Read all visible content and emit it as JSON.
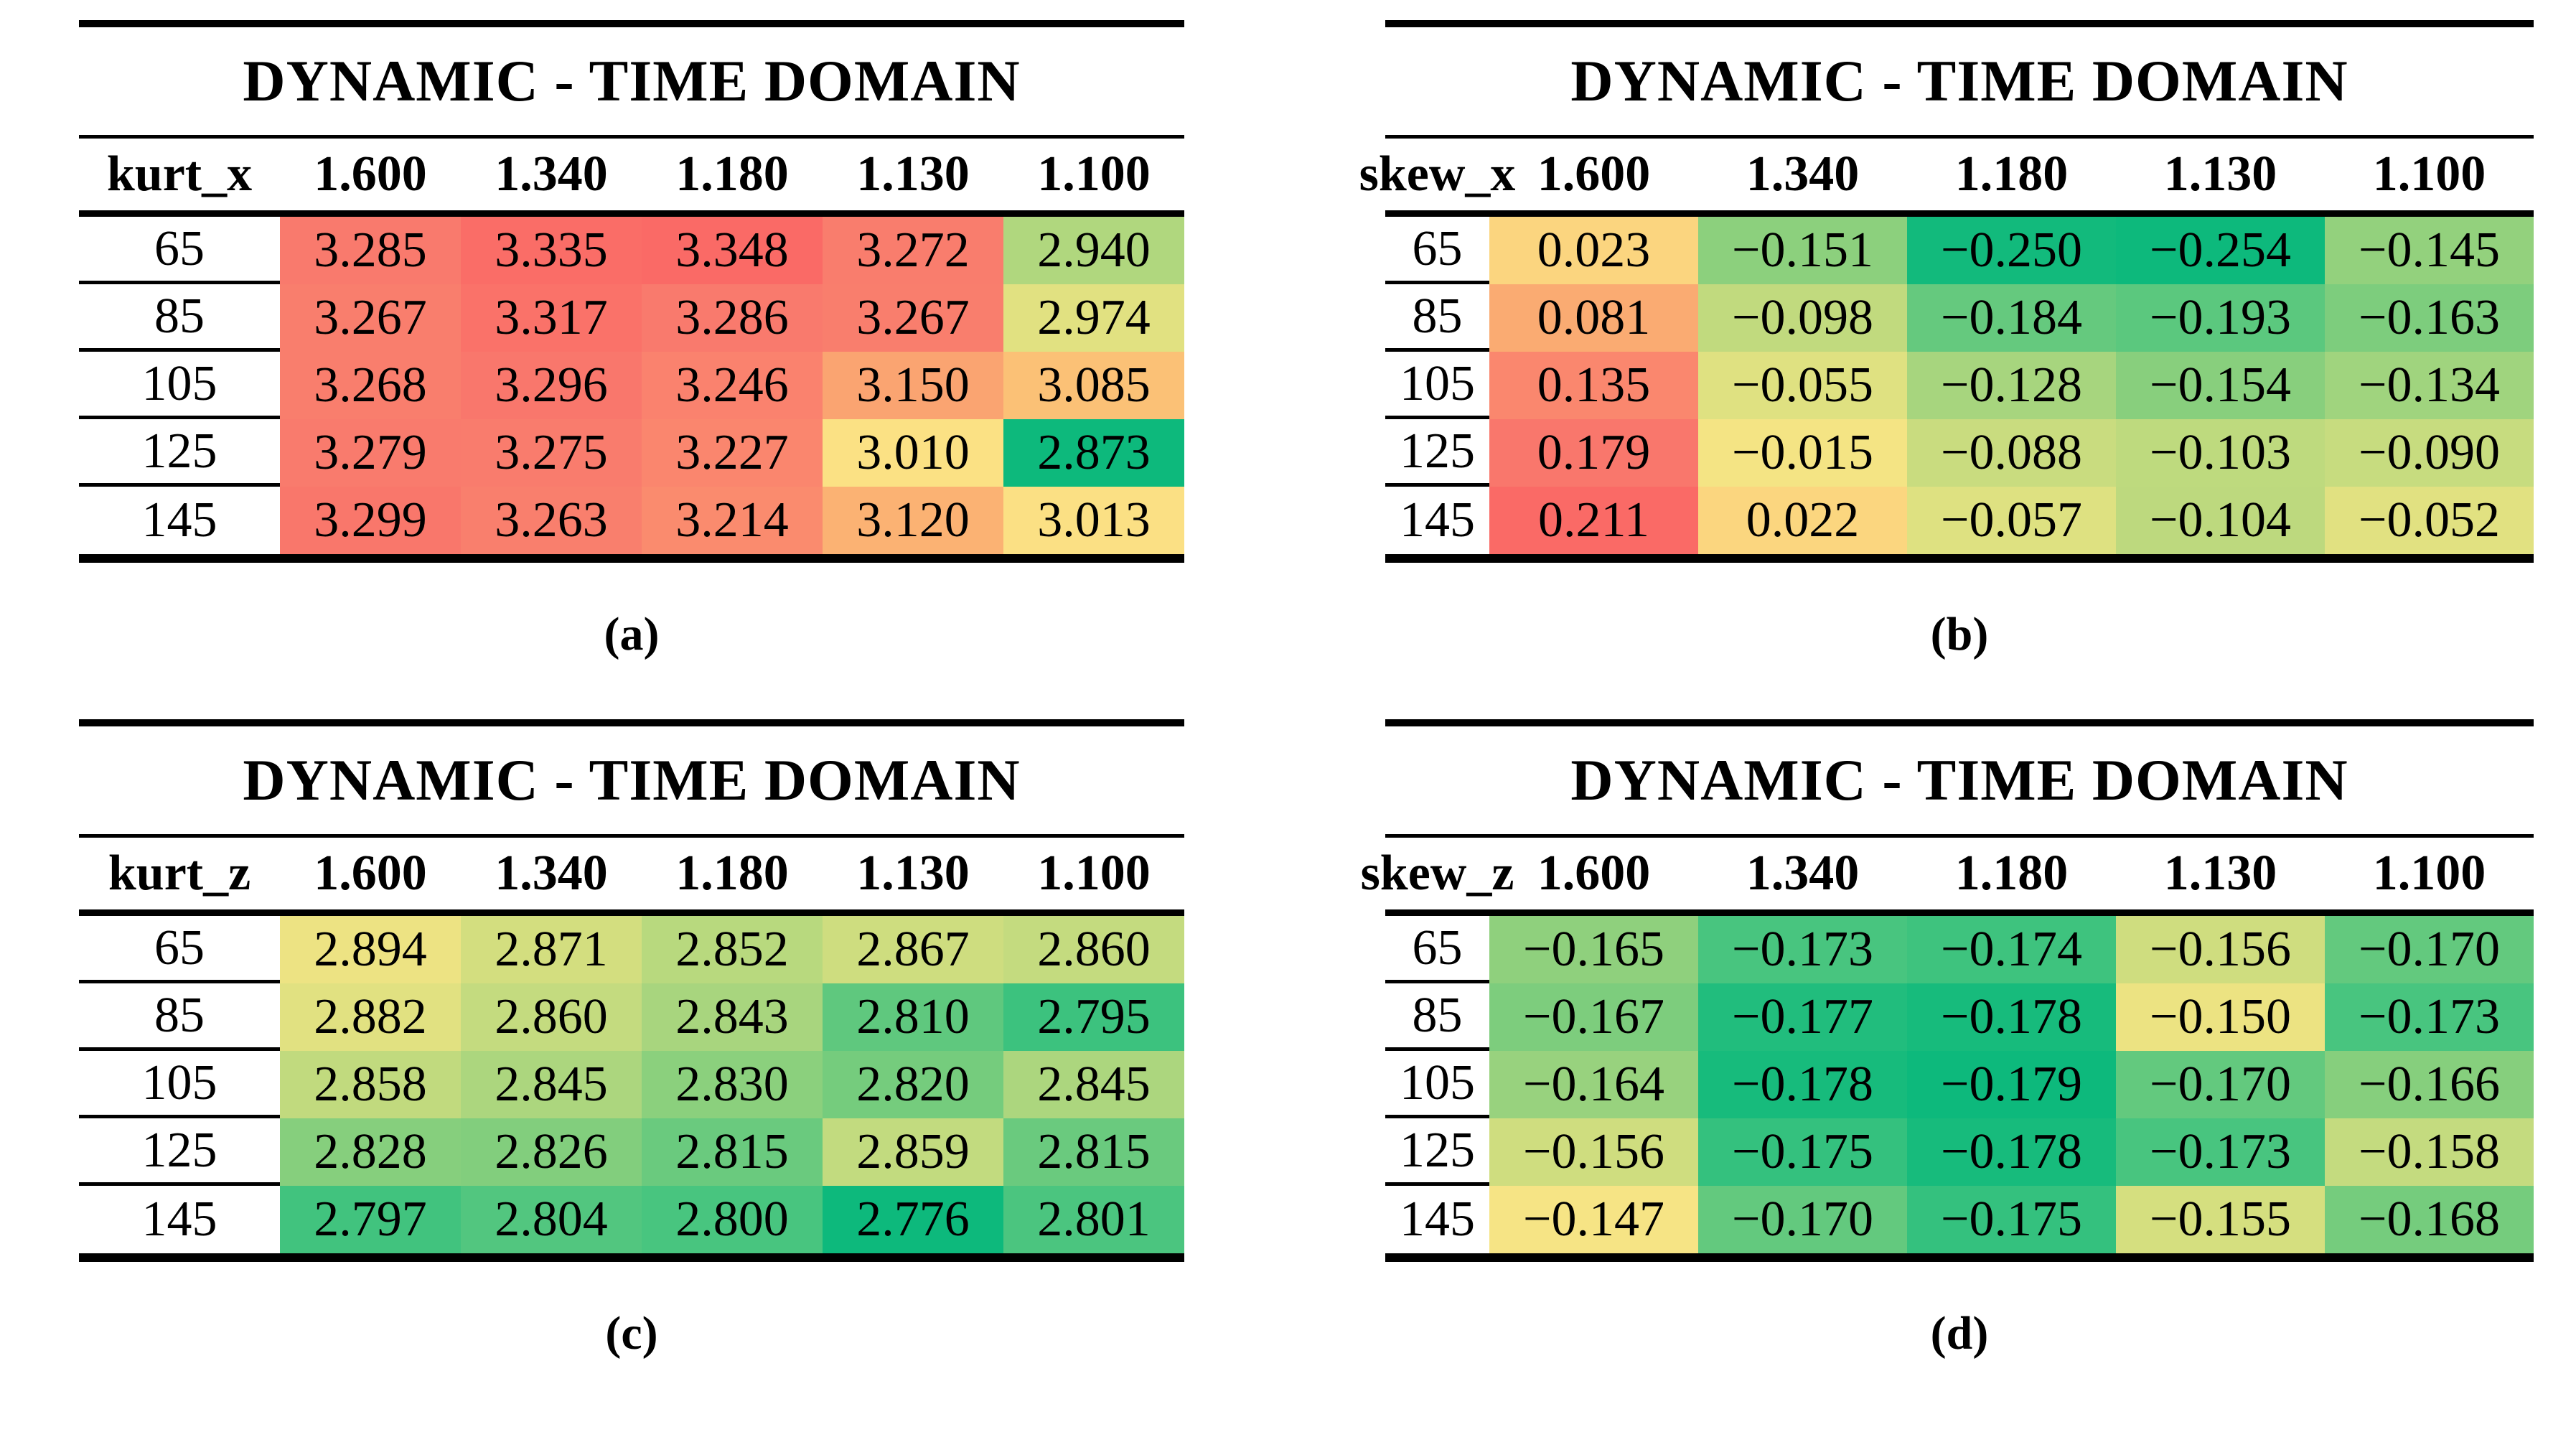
{
  "figure": {
    "type": "heatmap-table-figure",
    "panel_count": 4
  },
  "color_scale": {
    "description": "diverging green-yellow-red conditional formatting",
    "green_hex": "#0DB97C",
    "yellow_hex": "#FBE586",
    "red_hex": "#FA6A66",
    "green_to_yellow_stops": [
      [
        0.0,
        [
          13,
          185,
          124
        ]
      ],
      [
        0.2,
        [
          79,
          198,
          127
        ]
      ],
      [
        0.36,
        [
          126,
          205,
          125
        ]
      ],
      [
        0.53,
        [
          177,
          215,
          126
        ]
      ],
      [
        0.7,
        [
          210,
          222,
          127
        ]
      ],
      [
        0.85,
        [
          234,
          227,
          130
        ]
      ],
      [
        1.0,
        [
          251,
          229,
          134
        ]
      ]
    ],
    "yellow_to_red_stops": [
      [
        0.0,
        [
          251,
          229,
          134
        ]
      ],
      [
        0.24,
        [
          251,
          194,
          118
        ]
      ],
      [
        0.45,
        [
          250,
          161,
          112
        ]
      ],
      [
        0.65,
        [
          250,
          134,
          110
        ]
      ],
      [
        0.82,
        [
          249,
          122,
          109
        ]
      ],
      [
        1.0,
        [
          250,
          106,
          102
        ]
      ]
    ]
  },
  "tables": [
    {
      "title": "DYNAMIC - TIME DOMAIN",
      "corner_label": "kurt_x",
      "columns": [
        "1.600",
        "1.340",
        "1.180",
        "1.130",
        "1.100"
      ],
      "rows": [
        {
          "label": "65",
          "values": [
            "3.285",
            "3.335",
            "3.348",
            "3.272",
            "2.940"
          ]
        },
        {
          "label": "85",
          "values": [
            "3.267",
            "3.317",
            "3.286",
            "3.267",
            "2.974"
          ]
        },
        {
          "label": "105",
          "values": [
            "3.268",
            "3.296",
            "3.246",
            "3.150",
            "3.085"
          ]
        },
        {
          "label": "125",
          "values": [
            "3.279",
            "3.275",
            "3.227",
            "3.010",
            "2.873"
          ]
        },
        {
          "label": "145",
          "values": [
            "3.299",
            "3.263",
            "3.214",
            "3.120",
            "3.013"
          ]
        }
      ],
      "caption": "(a)",
      "scale": {
        "vmin": 2.873,
        "vmid": 3.0,
        "vmax": 3.348
      }
    },
    {
      "title": "DYNAMIC - TIME DOMAIN",
      "corner_label": "skew_x",
      "columns": [
        "1.600",
        "1.340",
        "1.180",
        "1.130",
        "1.100"
      ],
      "rows": [
        {
          "label": "65",
          "values": [
            "0.023",
            "−0.151",
            "−0.250",
            "−0.254",
            "−0.145"
          ]
        },
        {
          "label": "85",
          "values": [
            "0.081",
            "−0.098",
            "−0.184",
            "−0.193",
            "−0.163"
          ]
        },
        {
          "label": "105",
          "values": [
            "0.135",
            "−0.055",
            "−0.128",
            "−0.154",
            "−0.134"
          ]
        },
        {
          "label": "125",
          "values": [
            "0.179",
            "−0.015",
            "−0.088",
            "−0.103",
            "−0.090"
          ]
        },
        {
          "label": "145",
          "values": [
            "0.211",
            "0.022",
            "−0.057",
            "−0.104",
            "−0.052"
          ]
        }
      ],
      "caption": "(b)",
      "scale": {
        "vmin": -0.254,
        "vmid": 0.0,
        "vmax": 0.211
      }
    },
    {
      "title": "DYNAMIC - TIME DOMAIN",
      "corner_label": "kurt_z",
      "columns": [
        "1.600",
        "1.340",
        "1.180",
        "1.130",
        "1.100"
      ],
      "rows": [
        {
          "label": "65",
          "values": [
            "2.894",
            "2.871",
            "2.852",
            "2.867",
            "2.860"
          ]
        },
        {
          "label": "85",
          "values": [
            "2.882",
            "2.860",
            "2.843",
            "2.810",
            "2.795"
          ]
        },
        {
          "label": "105",
          "values": [
            "2.858",
            "2.845",
            "2.830",
            "2.820",
            "2.845"
          ]
        },
        {
          "label": "125",
          "values": [
            "2.828",
            "2.826",
            "2.815",
            "2.859",
            "2.815"
          ]
        },
        {
          "label": "145",
          "values": [
            "2.797",
            "2.804",
            "2.800",
            "2.776",
            "2.801"
          ]
        }
      ],
      "caption": "(c)",
      "scale": {
        "vmin": 2.776,
        "vmid": 2.91,
        "vmax": 3.04
      }
    },
    {
      "title": "DYNAMIC - TIME DOMAIN",
      "corner_label": "skew_z",
      "columns": [
        "1.600",
        "1.340",
        "1.180",
        "1.130",
        "1.100"
      ],
      "rows": [
        {
          "label": "65",
          "values": [
            "−0.165",
            "−0.173",
            "−0.174",
            "−0.156",
            "−0.170"
          ]
        },
        {
          "label": "85",
          "values": [
            "−0.167",
            "−0.177",
            "−0.178",
            "−0.150",
            "−0.173"
          ]
        },
        {
          "label": "105",
          "values": [
            "−0.164",
            "−0.178",
            "−0.179",
            "−0.170",
            "−0.166"
          ]
        },
        {
          "label": "125",
          "values": [
            "−0.156",
            "−0.175",
            "−0.178",
            "−0.173",
            "−0.158"
          ]
        },
        {
          "label": "145",
          "values": [
            "−0.147",
            "−0.170",
            "−0.175",
            "−0.155",
            "−0.168"
          ]
        }
      ],
      "caption": "(d)",
      "scale": {
        "vmin": -0.179,
        "vmid": -0.1455,
        "vmax": -0.112
      }
    }
  ],
  "chart_data": [
    {
      "type": "heatmap",
      "title": "DYNAMIC - TIME DOMAIN",
      "corner_label": "kurt_x",
      "x_categories": [
        "1.600",
        "1.340",
        "1.180",
        "1.130",
        "1.100"
      ],
      "y_categories": [
        65,
        85,
        105,
        125,
        145
      ],
      "values": [
        [
          3.285,
          3.335,
          3.348,
          3.272,
          2.94
        ],
        [
          3.267,
          3.317,
          3.286,
          3.267,
          2.974
        ],
        [
          3.268,
          3.296,
          3.246,
          3.15,
          3.085
        ],
        [
          3.279,
          3.275,
          3.227,
          3.01,
          2.873
        ],
        [
          3.299,
          3.263,
          3.214,
          3.12,
          3.013
        ]
      ],
      "colormap": "green-yellow-red (low to high)",
      "subcaption": "(a)"
    },
    {
      "type": "heatmap",
      "title": "DYNAMIC - TIME DOMAIN",
      "corner_label": "skew_x",
      "x_categories": [
        "1.600",
        "1.340",
        "1.180",
        "1.130",
        "1.100"
      ],
      "y_categories": [
        65,
        85,
        105,
        125,
        145
      ],
      "values": [
        [
          0.023,
          -0.151,
          -0.25,
          -0.254,
          -0.145
        ],
        [
          0.081,
          -0.098,
          -0.184,
          -0.193,
          -0.163
        ],
        [
          0.135,
          -0.055,
          -0.128,
          -0.154,
          -0.134
        ],
        [
          0.179,
          -0.015,
          -0.088,
          -0.103,
          -0.09
        ],
        [
          0.211,
          0.022,
          -0.057,
          -0.104,
          -0.052
        ]
      ],
      "colormap": "green-yellow-red (low to high)",
      "subcaption": "(b)"
    },
    {
      "type": "heatmap",
      "title": "DYNAMIC - TIME DOMAIN",
      "corner_label": "kurt_z",
      "x_categories": [
        "1.600",
        "1.340",
        "1.180",
        "1.130",
        "1.100"
      ],
      "y_categories": [
        65,
        85,
        105,
        125,
        145
      ],
      "values": [
        [
          2.894,
          2.871,
          2.852,
          2.867,
          2.86
        ],
        [
          2.882,
          2.86,
          2.843,
          2.81,
          2.795
        ],
        [
          2.858,
          2.845,
          2.83,
          2.82,
          2.845
        ],
        [
          2.828,
          2.826,
          2.815,
          2.859,
          2.815
        ],
        [
          2.797,
          2.804,
          2.8,
          2.776,
          2.801
        ]
      ],
      "colormap": "green-yellow-red (low to high)",
      "subcaption": "(c)"
    },
    {
      "type": "heatmap",
      "title": "DYNAMIC - TIME DOMAIN",
      "corner_label": "skew_z",
      "x_categories": [
        "1.600",
        "1.340",
        "1.180",
        "1.130",
        "1.100"
      ],
      "y_categories": [
        65,
        85,
        105,
        125,
        145
      ],
      "values": [
        [
          -0.165,
          -0.173,
          -0.174,
          -0.156,
          -0.17
        ],
        [
          -0.167,
          -0.177,
          -0.178,
          -0.15,
          -0.173
        ],
        [
          -0.164,
          -0.178,
          -0.179,
          -0.17,
          -0.166
        ],
        [
          -0.156,
          -0.175,
          -0.178,
          -0.173,
          -0.158
        ],
        [
          -0.147,
          -0.17,
          -0.175,
          -0.155,
          -0.168
        ]
      ],
      "colormap": "green-yellow-red (low to high)",
      "subcaption": "(d)"
    }
  ]
}
